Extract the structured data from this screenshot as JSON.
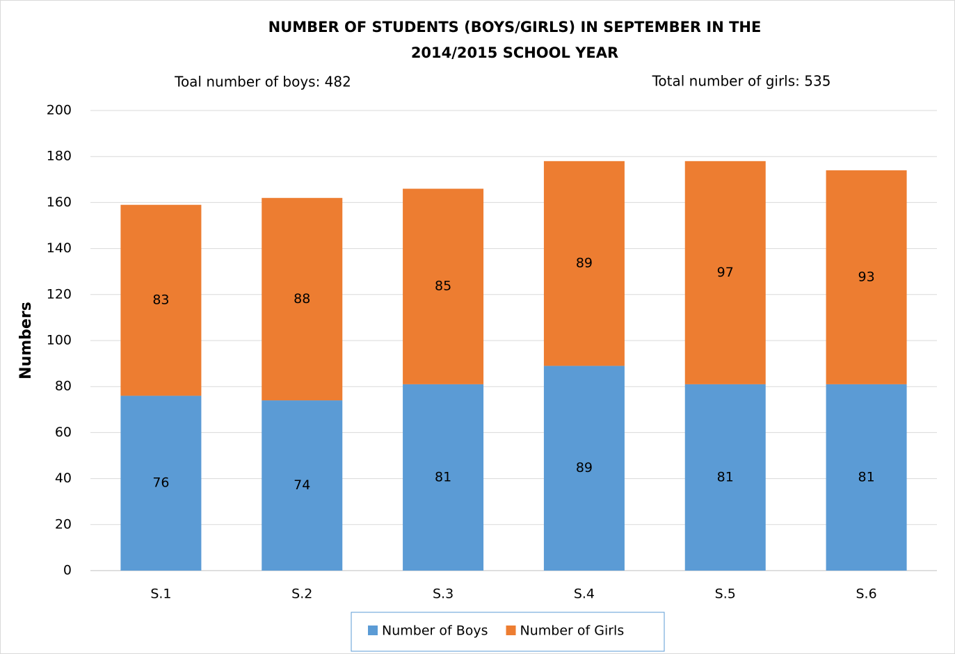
{
  "chart_data": {
    "type": "stacked_bar",
    "title": [
      "NUMBER OF STUDENTS (BOYS/GIRLS) IN SEPTEMBER IN THE",
      "2014/2015 SCHOOL YEAR"
    ],
    "annotations": [
      "Toal number of boys: 482",
      "Total number of girls: 535"
    ],
    "y_label": "Numbers",
    "categories": [
      "S.1",
      "S.2",
      "S.3",
      "S.4",
      "S.5",
      "S.6"
    ],
    "series": [
      {
        "name": "Number of Boys",
        "color": "#5b9bd5",
        "values": [
          76,
          74,
          81,
          89,
          81,
          81
        ]
      },
      {
        "name": "Number of Girls",
        "color": "#ed7d31",
        "values": [
          83,
          88,
          85,
          89,
          97,
          93
        ]
      }
    ],
    "ylim": [
      0,
      200
    ],
    "yticks": [
      0,
      20,
      40,
      60,
      80,
      100,
      120,
      140,
      160,
      180,
      200
    ],
    "grid": true,
    "legend": "bottom"
  }
}
